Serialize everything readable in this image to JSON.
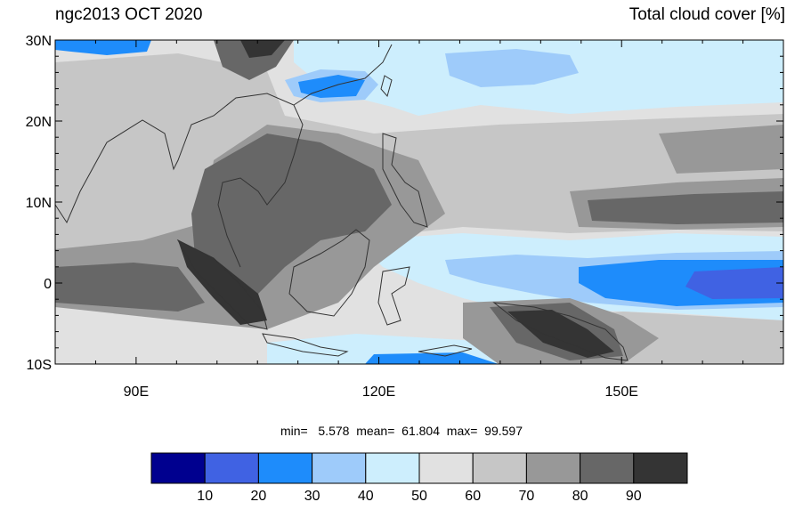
{
  "header": {
    "title_left": "ngc2013 OCT 2020",
    "title_right": "Total cloud cover [%]"
  },
  "map": {
    "lon_range": [
      80,
      170
    ],
    "lat_range": [
      -10,
      30
    ],
    "lat_ticks": [
      {
        "value": 30,
        "label": "30N"
      },
      {
        "value": 20,
        "label": "20N"
      },
      {
        "value": 10,
        "label": "10N"
      },
      {
        "value": 0,
        "label": "0"
      },
      {
        "value": -10,
        "label": "10S"
      }
    ],
    "lon_ticks": [
      {
        "value": 90,
        "label": "90E"
      },
      {
        "value": 120,
        "label": "120E"
      },
      {
        "value": 150,
        "label": "150E"
      }
    ]
  },
  "stats": {
    "text": "min=   5.578  mean=  61.804  max=  99.597"
  },
  "colorbar": {
    "colors": [
      "#00008f",
      "#4062e3",
      "#1e8cfb",
      "#9ecbfa",
      "#cdeefd",
      "#e1e1e1",
      "#c6c6c6",
      "#989898",
      "#676767",
      "#343434"
    ],
    "labels": [
      "10",
      "20",
      "30",
      "40",
      "50",
      "60",
      "70",
      "80",
      "90"
    ]
  }
}
